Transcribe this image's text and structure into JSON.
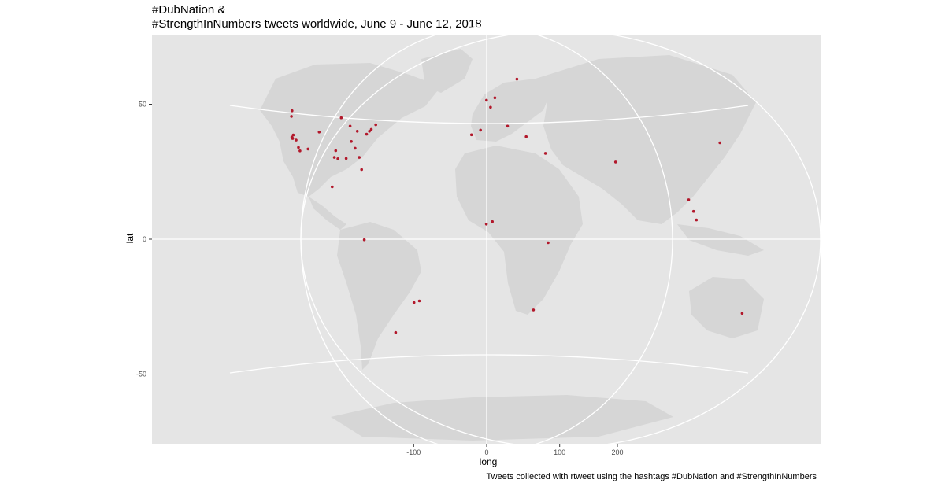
{
  "title_line1": "#DubNation &",
  "title_line2": "#StrengthInNumbers tweets worldwide, June 9 - June 12, 2018",
  "xlabel": "long",
  "ylabel": "lat",
  "caption": "Tweets collected with rtweet using the hashtags #DubNation and #StrengthInNumbers",
  "colors": {
    "panel": "#e5e5e5",
    "land": "#d6d6d6",
    "grid": "#ffffff",
    "points": "#b2182b"
  },
  "chart_data": {
    "type": "scatter",
    "projection": "orthographic-like world map",
    "xlabel": "long",
    "ylabel": "lat",
    "x_ticks": [
      "-100",
      "0",
      "100",
      "200"
    ],
    "y_ticks": [
      "50",
      "0",
      "-50"
    ],
    "ylim": [
      -75,
      75
    ],
    "points": [
      {
        "long": -122.4,
        "lat": 37.8
      },
      {
        "long": -122.1,
        "lat": 37.4
      },
      {
        "long": -121.9,
        "lat": 37.3
      },
      {
        "long": -122.2,
        "lat": 37.6
      },
      {
        "long": -121.5,
        "lat": 38.6
      },
      {
        "long": -118.2,
        "lat": 34.0
      },
      {
        "long": -117.2,
        "lat": 32.7
      },
      {
        "long": -119.7,
        "lat": 36.7
      },
      {
        "long": -122.7,
        "lat": 45.5
      },
      {
        "long": -122.3,
        "lat": 47.6
      },
      {
        "long": -112.0,
        "lat": 33.4
      },
      {
        "long": -104.9,
        "lat": 39.7
      },
      {
        "long": -97.7,
        "lat": 30.3
      },
      {
        "long": -95.4,
        "lat": 29.8
      },
      {
        "long": -96.8,
        "lat": 32.8
      },
      {
        "long": -90.1,
        "lat": 29.9
      },
      {
        "long": -87.6,
        "lat": 41.9
      },
      {
        "long": -84.4,
        "lat": 33.7
      },
      {
        "long": -81.7,
        "lat": 30.3
      },
      {
        "long": -80.2,
        "lat": 25.8
      },
      {
        "long": -77.0,
        "lat": 38.9
      },
      {
        "long": -74.0,
        "lat": 40.7
      },
      {
        "long": -71.1,
        "lat": 42.4
      },
      {
        "long": -75.2,
        "lat": 40.0
      },
      {
        "long": -83.0,
        "lat": 40.0
      },
      {
        "long": -86.8,
        "lat": 36.2
      },
      {
        "long": -93.3,
        "lat": 45.0
      },
      {
        "long": -99.1,
        "lat": 19.4
      },
      {
        "long": -78.5,
        "lat": -0.2
      },
      {
        "long": -46.6,
        "lat": -23.5
      },
      {
        "long": -43.2,
        "lat": -22.9
      },
      {
        "long": -58.4,
        "lat": -34.6
      },
      {
        "long": -0.1,
        "lat": 51.5
      },
      {
        "long": 2.3,
        "lat": 48.9
      },
      {
        "long": -3.7,
        "lat": 40.4
      },
      {
        "long": 4.9,
        "lat": 52.4
      },
      {
        "long": 12.5,
        "lat": 41.9
      },
      {
        "long": 18.1,
        "lat": 59.3
      },
      {
        "long": 23.7,
        "lat": 38.0
      },
      {
        "long": 35.2,
        "lat": 31.8
      },
      {
        "long": -9.1,
        "lat": 38.7
      },
      {
        "long": 3.4,
        "lat": 6.5
      },
      {
        "long": -0.2,
        "lat": 5.6
      },
      {
        "long": 36.8,
        "lat": -1.3
      },
      {
        "long": 28.0,
        "lat": -26.2
      },
      {
        "long": 77.2,
        "lat": 28.6
      },
      {
        "long": 139.7,
        "lat": 35.7
      },
      {
        "long": 121.0,
        "lat": 14.6
      },
      {
        "long": 123.9,
        "lat": 10.3
      },
      {
        "long": 125.6,
        "lat": 7.1
      },
      {
        "long": 153.0,
        "lat": -27.5
      }
    ]
  }
}
